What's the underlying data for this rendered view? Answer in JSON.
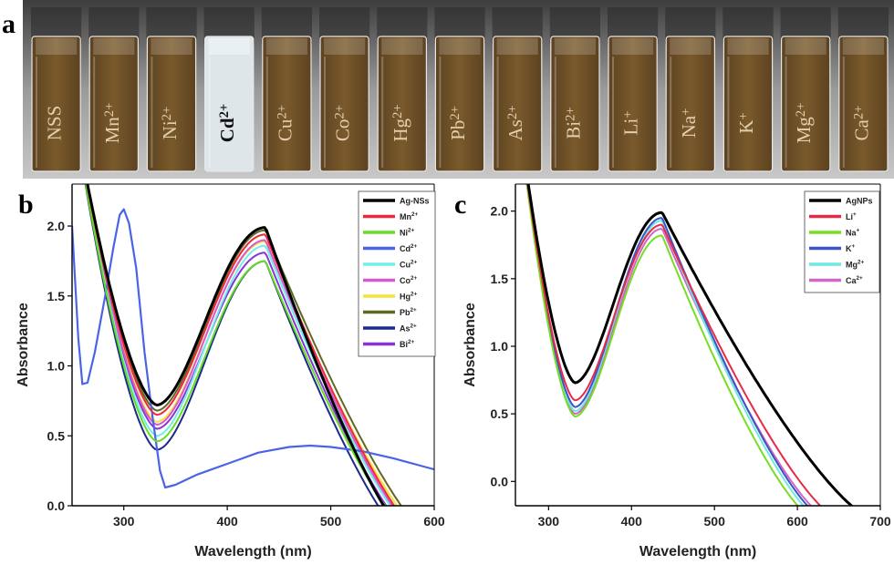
{
  "panel_a": {
    "letter": "a",
    "vials": [
      {
        "ion": "NSS",
        "sup": "",
        "clear": false
      },
      {
        "ion": "Mn",
        "sup": "2+",
        "clear": false
      },
      {
        "ion": "Ni",
        "sup": "2+",
        "clear": false
      },
      {
        "ion": "Cd",
        "sup": "2+",
        "clear": true
      },
      {
        "ion": "Cu",
        "sup": "2+",
        "clear": false
      },
      {
        "ion": "Co",
        "sup": "2+",
        "clear": false
      },
      {
        "ion": "Hg",
        "sup": "2+",
        "clear": false
      },
      {
        "ion": "Pb",
        "sup": "2+",
        "clear": false
      },
      {
        "ion": "As",
        "sup": "2+",
        "clear": false
      },
      {
        "ion": "Bi",
        "sup": "2+",
        "clear": false
      },
      {
        "ion": "Li",
        "sup": "+",
        "clear": false
      },
      {
        "ion": "Na",
        "sup": "+",
        "clear": false
      },
      {
        "ion": "K",
        "sup": "+",
        "clear": false
      },
      {
        "ion": "Mg",
        "sup": "2+",
        "clear": false
      },
      {
        "ion": "Ca",
        "sup": "2+",
        "clear": false
      }
    ],
    "colors": {
      "liquid": "#7a5a2c",
      "liquid_dark": "#5c4220",
      "clear_liquid": "#dfe6ea",
      "label": "#e3cfae",
      "clear_label": "#111111"
    }
  },
  "chart_data": [
    {
      "panel": "b",
      "type": "line",
      "xlabel": "Wavelength (nm)",
      "ylabel": "Absorbance",
      "xlim": [
        250,
        600
      ],
      "ylim": [
        0,
        2.3
      ],
      "xticks": [
        300,
        400,
        500,
        600
      ],
      "yticks": [
        0.0,
        0.5,
        1.0,
        1.5,
        2.0
      ],
      "tick_format": 1,
      "legend_position": "top-right",
      "series": [
        {
          "name": "Ag-NSs",
          "sup": "",
          "color": "#000000",
          "peak": 1.99,
          "min_y": 0.72,
          "end": 577,
          "width": 3
        },
        {
          "name": "Mn",
          "sup": "2+",
          "color": "#f0283c",
          "peak": 1.94,
          "min_y": 0.65,
          "end": 590,
          "width": 2
        },
        {
          "name": "Ni",
          "sup": "2+",
          "color": "#66dd22",
          "peak": 1.75,
          "min_y": 0.46,
          "end": 581,
          "width": 2
        },
        {
          "name": "Cd",
          "sup": "2+",
          "color": "#4b63e6",
          "width": 2.2,
          "points": [
            [
              250,
              2.0
            ],
            [
              256,
              1.2
            ],
            [
              260,
              0.87
            ],
            [
              265,
              0.88
            ],
            [
              272,
              1.1
            ],
            [
              282,
              1.5
            ],
            [
              290,
              1.85
            ],
            [
              296,
              2.08
            ],
            [
              300,
              2.12
            ],
            [
              305,
              2.02
            ],
            [
              312,
              1.7
            ],
            [
              320,
              1.1
            ],
            [
              328,
              0.62
            ],
            [
              335,
              0.25
            ],
            [
              340,
              0.13
            ],
            [
              350,
              0.15
            ],
            [
              370,
              0.22
            ],
            [
              400,
              0.3
            ],
            [
              430,
              0.38
            ],
            [
              460,
              0.42
            ],
            [
              480,
              0.43
            ],
            [
              500,
              0.42
            ],
            [
              530,
              0.39
            ],
            [
              560,
              0.34
            ],
            [
              585,
              0.29
            ],
            [
              600,
              0.26
            ]
          ]
        },
        {
          "name": "Cu",
          "sup": "2+",
          "color": "#6ff0e6",
          "peak": 1.86,
          "min_y": 0.5,
          "end": 586,
          "width": 2
        },
        {
          "name": "Co",
          "sup": "2+",
          "color": "#d957d0",
          "peak": 1.9,
          "min_y": 0.58,
          "end": 588,
          "width": 2
        },
        {
          "name": "Hg",
          "sup": "2+",
          "color": "#f4e33a",
          "peak": 1.89,
          "min_y": 0.6,
          "end": 594,
          "width": 2
        },
        {
          "name": "Pb",
          "sup": "2+",
          "color": "#5e6a22",
          "peak": 1.97,
          "min_y": 0.68,
          "end": 598,
          "width": 2
        },
        {
          "name": "As",
          "sup": "2+",
          "color": "#1c2a8c",
          "peak": 1.75,
          "min_y": 0.4,
          "end": 573,
          "width": 2
        },
        {
          "name": "Bi",
          "sup": "2+",
          "color": "#8a33d9",
          "peak": 1.81,
          "min_y": 0.55,
          "end": 582,
          "width": 2
        }
      ]
    },
    {
      "panel": "c",
      "type": "line",
      "xlabel": "Wavelength (nm)",
      "ylabel": "Absorbance",
      "xlim": [
        260,
        700
      ],
      "ylim": [
        -0.18,
        2.2
      ],
      "xticks": [
        300,
        400,
        500,
        600,
        700
      ],
      "yticks": [
        0.0,
        0.5,
        1.0,
        1.5,
        2.0
      ],
      "tick_format": 1,
      "legend_position": "top-right",
      "series": [
        {
          "name": "AgNPs",
          "sup": "",
          "color": "#000000",
          "peak": 1.99,
          "min_y": 0.73,
          "end": 682,
          "width": 3
        },
        {
          "name": "Li",
          "sup": "+",
          "color": "#e62b48",
          "peak": 1.9,
          "min_y": 0.6,
          "end": 642,
          "width": 2
        },
        {
          "name": "Na",
          "sup": "+",
          "color": "#77dd22",
          "peak": 1.82,
          "min_y": 0.48,
          "end": 613,
          "width": 2
        },
        {
          "name": "K",
          "sup": "+",
          "color": "#3d54c8",
          "peak": 1.95,
          "min_y": 0.55,
          "end": 625,
          "width": 2
        },
        {
          "name": "Mg",
          "sup": "2+",
          "color": "#6fe8e0",
          "peak": 1.93,
          "min_y": 0.52,
          "end": 620,
          "width": 2
        },
        {
          "name": "Ca",
          "sup": "2+",
          "color": "#cf66c8",
          "peak": 1.87,
          "min_y": 0.5,
          "end": 630,
          "width": 2
        }
      ]
    }
  ]
}
